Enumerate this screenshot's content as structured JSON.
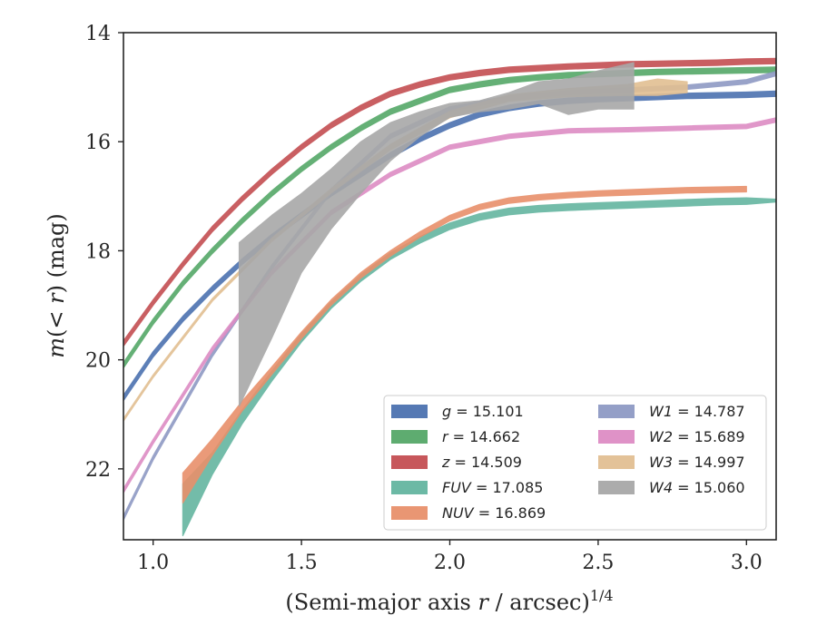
{
  "chart_data": {
    "type": "line",
    "xlabel": "(Semi-major axis r / arcsec)^{1/4}",
    "ylabel": "m(< r) (mag)",
    "xlim": [
      0.9,
      3.1
    ],
    "ylim": [
      23.3,
      14.0
    ],
    "y_inverted": true,
    "xticks": [
      1.0,
      1.5,
      2.0,
      2.5,
      3.0
    ],
    "xtick_labels": [
      "1.0",
      "1.5",
      "2.0",
      "2.5",
      "3.0"
    ],
    "yticks": [
      14,
      16,
      18,
      20,
      22
    ],
    "ytick_labels": [
      "14",
      "16",
      "18",
      "20",
      "22"
    ],
    "grid": false,
    "legend_position": "lower-right",
    "legend_columns": 2,
    "series": [
      {
        "name": "g = 15.101",
        "band": "g",
        "value": "15.101",
        "color": "#4c72b0",
        "x": [
          0.9,
          1.0,
          1.1,
          1.2,
          1.3,
          1.4,
          1.5,
          1.6,
          1.7,
          1.8,
          1.9,
          2.0,
          2.1,
          2.2,
          2.3,
          2.4,
          2.5,
          2.6,
          2.7,
          2.8,
          2.9,
          3.0,
          3.1
        ],
        "y": [
          20.7,
          19.9,
          19.25,
          18.7,
          18.2,
          17.75,
          17.35,
          16.95,
          16.6,
          16.25,
          15.95,
          15.7,
          15.5,
          15.38,
          15.3,
          15.25,
          15.22,
          15.2,
          15.18,
          15.16,
          15.15,
          15.14,
          15.12
        ],
        "width": 0.1
      },
      {
        "name": "r = 14.662",
        "band": "r",
        "value": "14.662",
        "color": "#55a868",
        "x": [
          0.9,
          1.0,
          1.1,
          1.2,
          1.3,
          1.4,
          1.5,
          1.6,
          1.7,
          1.8,
          1.9,
          2.0,
          2.1,
          2.2,
          2.3,
          2.4,
          2.5,
          2.6,
          2.7,
          2.8,
          2.9,
          3.0,
          3.1
        ],
        "y": [
          20.1,
          19.3,
          18.6,
          18.0,
          17.45,
          16.95,
          16.5,
          16.1,
          15.75,
          15.45,
          15.25,
          15.05,
          14.95,
          14.87,
          14.82,
          14.78,
          14.76,
          14.74,
          14.72,
          14.71,
          14.7,
          14.69,
          14.68
        ],
        "width": 0.1
      },
      {
        "name": "z = 14.509",
        "band": "z",
        "value": "14.509",
        "color": "#c44e52",
        "x": [
          0.9,
          1.0,
          1.1,
          1.2,
          1.3,
          1.4,
          1.5,
          1.6,
          1.7,
          1.8,
          1.9,
          2.0,
          2.1,
          2.2,
          2.3,
          2.4,
          2.5,
          2.6,
          2.7,
          2.8,
          2.9,
          3.0,
          3.1
        ],
        "y": [
          19.7,
          18.95,
          18.25,
          17.6,
          17.05,
          16.55,
          16.1,
          15.7,
          15.38,
          15.12,
          14.95,
          14.82,
          14.74,
          14.68,
          14.65,
          14.62,
          14.6,
          14.58,
          14.57,
          14.56,
          14.55,
          14.53,
          14.52
        ],
        "width": 0.1
      },
      {
        "name": "FUV = 17.085",
        "band": "FUV",
        "value": "17.085",
        "color": "#64b5a0",
        "x": [
          1.1,
          1.2,
          1.3,
          1.4,
          1.5,
          1.6,
          1.7,
          1.8,
          1.9,
          2.0,
          2.1,
          2.2,
          2.3,
          2.4,
          2.5,
          2.6,
          2.7,
          2.8,
          2.9,
          3.0,
          3.1
        ],
        "y": [
          22.75,
          21.9,
          21.05,
          20.3,
          19.6,
          19.0,
          18.5,
          18.1,
          17.8,
          17.55,
          17.38,
          17.28,
          17.23,
          17.2,
          17.18,
          17.16,
          17.14,
          17.12,
          17.1,
          17.09,
          17.08
        ],
        "width": [
          0.95,
          0.4,
          0.25,
          0.18,
          0.15,
          0.12,
          0.12,
          0.12,
          0.12,
          0.12,
          0.12,
          0.12,
          0.12,
          0.12,
          0.12,
          0.12,
          0.12,
          0.12,
          0.12,
          0.12,
          0.05
        ]
      },
      {
        "name": "NUV = 16.869",
        "band": "NUV",
        "value": "16.869",
        "color": "#e8906b",
        "x": [
          1.1,
          1.2,
          1.3,
          1.4,
          1.5,
          1.6,
          1.7,
          1.8,
          1.9,
          2.0,
          2.1,
          2.2,
          2.3,
          2.4,
          2.5,
          2.6,
          2.7,
          2.8,
          2.9,
          3.0
        ],
        "y": [
          22.35,
          21.6,
          20.85,
          20.2,
          19.55,
          18.95,
          18.45,
          18.05,
          17.7,
          17.4,
          17.2,
          17.08,
          17.02,
          16.98,
          16.95,
          16.93,
          16.91,
          16.89,
          16.88,
          16.87
        ],
        "width": [
          0.55,
          0.3,
          0.18,
          0.14,
          0.12,
          0.1,
          0.1,
          0.1,
          0.1,
          0.1,
          0.1,
          0.1,
          0.1,
          0.1,
          0.1,
          0.1,
          0.1,
          0.1,
          0.1,
          0.1
        ]
      },
      {
        "name": "W1 = 14.787",
        "band": "W1",
        "value": "14.787",
        "color": "#8e9ac4",
        "x": [
          0.9,
          1.0,
          1.2,
          1.4,
          1.6,
          1.8,
          2.0,
          2.2,
          2.4,
          2.6,
          2.8,
          3.0,
          3.1
        ],
        "y": [
          22.9,
          21.8,
          19.9,
          18.3,
          16.9,
          15.9,
          15.4,
          15.2,
          15.1,
          15.05,
          15.0,
          14.9,
          14.75
        ],
        "width": 0.08
      },
      {
        "name": "W2 = 15.689",
        "band": "W2",
        "value": "15.689",
        "color": "#dd8cc4",
        "x": [
          0.9,
          1.0,
          1.2,
          1.4,
          1.6,
          1.8,
          2.0,
          2.2,
          2.4,
          2.6,
          2.8,
          3.0,
          3.1
        ],
        "y": [
          22.4,
          21.5,
          19.8,
          18.4,
          17.3,
          16.6,
          16.1,
          15.9,
          15.8,
          15.78,
          15.75,
          15.72,
          15.6
        ],
        "width": 0.08
      },
      {
        "name": "W3 = 14.997",
        "band": "W3",
        "value": "14.997",
        "color": "#e2bf92",
        "x": [
          0.9,
          1.0,
          1.2,
          1.4,
          1.6,
          1.8,
          2.0,
          2.2,
          2.4,
          2.6,
          2.7,
          2.8
        ],
        "y": [
          21.1,
          20.3,
          18.9,
          17.8,
          16.9,
          16.1,
          15.5,
          15.2,
          15.1,
          15.05,
          15.0,
          15.0
        ],
        "width": [
          0.05,
          0.05,
          0.05,
          0.06,
          0.08,
          0.1,
          0.12,
          0.12,
          0.15,
          0.2,
          0.3,
          0.2
        ]
      },
      {
        "name": "W4 = 15.060",
        "band": "W4",
        "value": "15.060",
        "color": "#a8a8a8",
        "x": [
          1.29,
          1.4,
          1.5,
          1.6,
          1.7,
          1.8,
          1.9,
          2.0,
          2.1,
          2.2,
          2.3,
          2.4,
          2.5,
          2.62
        ],
        "y_upper": [
          17.85,
          17.35,
          16.95,
          16.5,
          16.0,
          15.65,
          15.45,
          15.3,
          15.25,
          15.1,
          14.9,
          14.85,
          14.7,
          14.55
        ],
        "y_lower": [
          20.85,
          19.6,
          18.4,
          17.6,
          16.95,
          16.35,
          15.9,
          15.55,
          15.45,
          15.4,
          15.3,
          15.5,
          15.4,
          15.4
        ]
      }
    ]
  }
}
